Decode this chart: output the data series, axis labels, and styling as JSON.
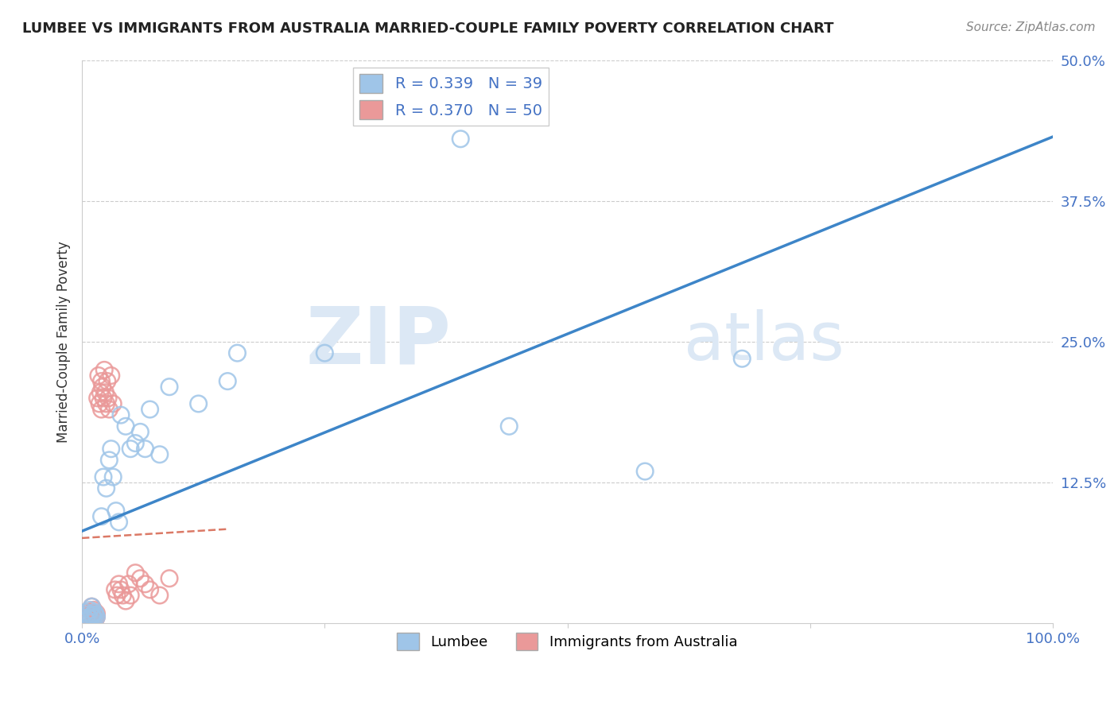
{
  "title": "LUMBEE VS IMMIGRANTS FROM AUSTRALIA MARRIED-COUPLE FAMILY POVERTY CORRELATION CHART",
  "source": "Source: ZipAtlas.com",
  "ylabel": "Married-Couple Family Poverty",
  "xlim": [
    0,
    1.0
  ],
  "ylim": [
    0,
    0.5
  ],
  "xtick_labels": [
    "0.0%",
    "",
    "",
    "",
    "100.0%"
  ],
  "ytick_labels": [
    "",
    "12.5%",
    "25.0%",
    "37.5%",
    "50.0%"
  ],
  "lumbee_R": 0.339,
  "lumbee_N": 39,
  "australia_R": 0.37,
  "australia_N": 50,
  "blue_color": "#9fc5e8",
  "pink_color": "#ea9999",
  "blue_line_color": "#3d85c8",
  "pink_line_color": "#cc4125",
  "watermark_zip": "ZIP",
  "watermark_atlas": "atlas",
  "watermark_color": "#dce8f5",
  "lumbee_x": [
    0.003,
    0.004,
    0.005,
    0.006,
    0.007,
    0.008,
    0.009,
    0.01,
    0.01,
    0.011,
    0.012,
    0.013,
    0.014,
    0.015,
    0.02,
    0.022,
    0.025,
    0.028,
    0.03,
    0.032,
    0.035,
    0.038,
    0.04,
    0.045,
    0.05,
    0.055,
    0.06,
    0.065,
    0.07,
    0.08,
    0.09,
    0.12,
    0.15,
    0.16,
    0.25,
    0.39,
    0.44,
    0.58,
    0.68
  ],
  "lumbee_y": [
    0.005,
    0.01,
    0.003,
    0.008,
    0.005,
    0.012,
    0.004,
    0.007,
    0.015,
    0.008,
    0.005,
    0.01,
    0.008,
    0.006,
    0.095,
    0.13,
    0.12,
    0.145,
    0.155,
    0.13,
    0.1,
    0.09,
    0.185,
    0.175,
    0.155,
    0.16,
    0.17,
    0.155,
    0.19,
    0.15,
    0.21,
    0.195,
    0.215,
    0.24,
    0.24,
    0.43,
    0.175,
    0.135,
    0.235
  ],
  "australia_x": [
    0.001,
    0.002,
    0.003,
    0.004,
    0.005,
    0.005,
    0.006,
    0.007,
    0.008,
    0.008,
    0.009,
    0.01,
    0.01,
    0.011,
    0.012,
    0.012,
    0.013,
    0.014,
    0.015,
    0.015,
    0.016,
    0.017,
    0.018,
    0.019,
    0.02,
    0.02,
    0.021,
    0.022,
    0.023,
    0.024,
    0.025,
    0.026,
    0.027,
    0.028,
    0.03,
    0.032,
    0.034,
    0.036,
    0.038,
    0.04,
    0.042,
    0.045,
    0.048,
    0.05,
    0.055,
    0.06,
    0.065,
    0.07,
    0.08,
    0.09
  ],
  "australia_y": [
    0.005,
    0.003,
    0.008,
    0.004,
    0.006,
    0.01,
    0.005,
    0.008,
    0.003,
    0.007,
    0.005,
    0.01,
    0.015,
    0.008,
    0.005,
    0.012,
    0.007,
    0.004,
    0.009,
    0.006,
    0.2,
    0.22,
    0.195,
    0.205,
    0.215,
    0.19,
    0.21,
    0.2,
    0.225,
    0.205,
    0.195,
    0.215,
    0.2,
    0.19,
    0.22,
    0.195,
    0.03,
    0.025,
    0.035,
    0.03,
    0.025,
    0.02,
    0.035,
    0.025,
    0.045,
    0.04,
    0.035,
    0.03,
    0.025,
    0.04
  ]
}
